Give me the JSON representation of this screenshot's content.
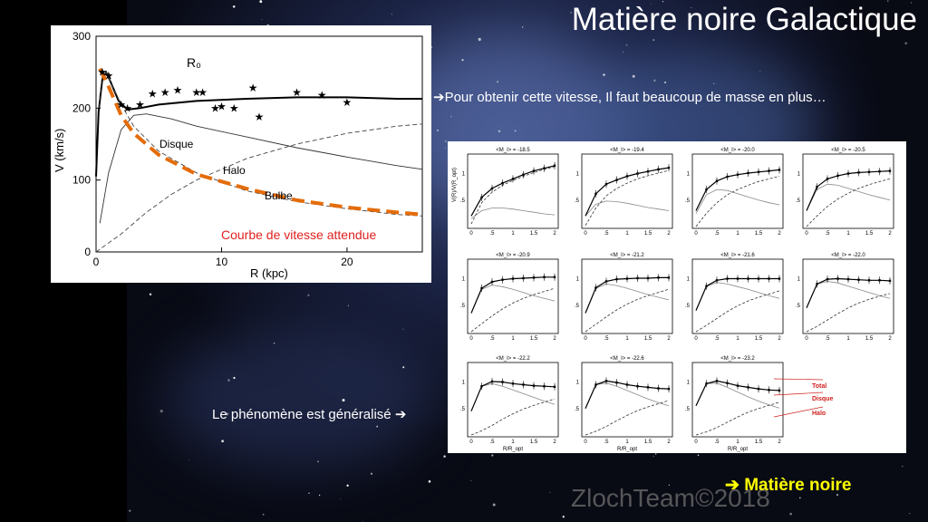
{
  "slide": {
    "title": "Matière noire Galactique",
    "note_top": "Pour obtenir  cette vitesse,  Il faut  beaucoup de masse en plus…",
    "note_bottom": "Le phénomène est généralisé",
    "conclusion": "Matière noire",
    "watermark": "ZlochTeam©2018",
    "arrow_icon": "arrow-right-icon",
    "colors": {
      "background": "#0b0f22",
      "title": "#ffffff",
      "conclusion": "#ffff00",
      "expected_curve": "#e46c0a",
      "expected_label": "#e02020"
    }
  },
  "chart_data": [
    {
      "type": "line",
      "xlabel": "R (kpc)",
      "ylabel": "V (km/s)",
      "xlim": [
        0,
        26
      ],
      "ylim": [
        0,
        300
      ],
      "xticks": [
        "0",
        "10",
        "20"
      ],
      "yticks": [
        "0",
        "100",
        "200",
        "300"
      ],
      "grid": false,
      "labels": {
        "r0": "R₀",
        "disk": "Disque",
        "halo": "Halo",
        "bulge": "Bulbe",
        "expected": "Courbe de vitesse attendue"
      },
      "series": [
        {
          "name": "Total",
          "style": "solid-thick",
          "x": [
            0,
            0.2,
            0.5,
            0.8,
            1.2,
            1.8,
            2.5,
            3.5,
            5,
            8,
            12,
            16,
            20,
            24,
            26
          ],
          "y": [
            105,
            195,
            240,
            250,
            235,
            210,
            198,
            200,
            205,
            210,
            213,
            215,
            215,
            213,
            213
          ]
        },
        {
          "name": "Disque",
          "style": "solid-thin",
          "x": [
            0.3,
            1,
            2,
            3,
            4,
            6,
            8,
            12,
            16,
            20,
            24,
            26
          ],
          "y": [
            40,
            110,
            170,
            190,
            192,
            185,
            175,
            160,
            145,
            132,
            120,
            115
          ]
        },
        {
          "name": "Halo",
          "style": "dashed",
          "x": [
            0,
            2,
            4,
            6,
            8,
            12,
            16,
            20,
            24,
            26
          ],
          "y": [
            0,
            25,
            55,
            80,
            100,
            130,
            150,
            165,
            175,
            178
          ]
        },
        {
          "name": "Bulbe",
          "style": "dashed",
          "x": [
            0.2,
            0.5,
            0.8,
            1.2,
            2,
            3,
            5,
            8,
            12,
            16,
            20,
            24,
            26
          ],
          "y": [
            200,
            245,
            250,
            235,
            205,
            175,
            140,
            110,
            85,
            70,
            60,
            52,
            50
          ]
        },
        {
          "name": "Courbe de vitesse attendue",
          "style": "dashed-orange",
          "x": [
            0.3,
            1,
            2,
            3,
            5,
            8,
            12,
            16,
            20,
            24,
            26
          ],
          "y": [
            255,
            230,
            190,
            165,
            135,
            108,
            88,
            72,
            62,
            55,
            52
          ]
        },
        {
          "name": "Observations",
          "style": "stars",
          "x": [
            0.5,
            1,
            2,
            2.5,
            3.5,
            4.5,
            5.5,
            6.5,
            8,
            8.5,
            9.5,
            10,
            11,
            12.5,
            13,
            16,
            18,
            20
          ],
          "y": [
            250,
            245,
            205,
            200,
            205,
            220,
            222,
            225,
            222,
            222,
            200,
            202,
            200,
            228,
            188,
            222,
            218,
            208
          ]
        }
      ]
    },
    {
      "type": "line",
      "xlabel": "R/R_opt",
      "ylabel": "V(R)/V(R_opt)",
      "xticks": [
        "0",
        ".5",
        "1",
        "1.5",
        "2"
      ],
      "yticks": [
        ".5",
        "1"
      ],
      "legend": [
        "Total",
        "Disque",
        "Halo"
      ],
      "legend_placement": "right",
      "panels": [
        {
          "label": "<M_I> = -18.5",
          "total": [
            0.2,
            0.55,
            0.72,
            0.82,
            0.9,
            0.98,
            1.05,
            1.1,
            1.15
          ],
          "disk": [
            0.15,
            0.3,
            0.35,
            0.35,
            0.33,
            0.3,
            0.27,
            0.24,
            0.22
          ],
          "halo": [
            0.05,
            0.45,
            0.65,
            0.78,
            0.87,
            0.95,
            1.02,
            1.08,
            1.13
          ]
        },
        {
          "label": "<M_I> = -19.4",
          "total": [
            0.2,
            0.62,
            0.8,
            0.88,
            0.95,
            1,
            1.04,
            1.08,
            1.11
          ],
          "disk": [
            0.2,
            0.42,
            0.48,
            0.47,
            0.44,
            0.4,
            0.36,
            0.33,
            0.3
          ],
          "halo": [
            0.02,
            0.35,
            0.58,
            0.72,
            0.82,
            0.9,
            0.96,
            1.01,
            1.06
          ]
        },
        {
          "label": "<M_I> = -20.0",
          "total": [
            0.3,
            0.7,
            0.86,
            0.94,
            0.98,
            1.01,
            1.03,
            1.05,
            1.07
          ],
          "disk": [
            0.25,
            0.6,
            0.7,
            0.68,
            0.62,
            0.56,
            0.5,
            0.45,
            0.41
          ],
          "halo": [
            0,
            0.25,
            0.45,
            0.6,
            0.7,
            0.78,
            0.85,
            0.9,
            0.95
          ]
        },
        {
          "label": "<M_I> = -20.5",
          "total": [
            0.3,
            0.75,
            0.9,
            0.96,
            1,
            1.02,
            1.03,
            1.04,
            1.05
          ],
          "disk": [
            0.3,
            0.7,
            0.8,
            0.78,
            0.72,
            0.66,
            0.6,
            0.55,
            0.5
          ],
          "halo": [
            0,
            0.2,
            0.38,
            0.52,
            0.63,
            0.72,
            0.79,
            0.85,
            0.9
          ]
        },
        {
          "label": "<M_I> = -20.9",
          "total": [
            0.35,
            0.82,
            0.94,
            0.98,
            1,
            1.01,
            1.02,
            1.03,
            1.03
          ],
          "disk": [
            0.35,
            0.8,
            0.88,
            0.85,
            0.8,
            0.74,
            0.68,
            0.63,
            0.58
          ],
          "halo": [
            0,
            0.15,
            0.3,
            0.43,
            0.54,
            0.63,
            0.7,
            0.76,
            0.82
          ]
        },
        {
          "label": "<M_I> = -21.2",
          "total": [
            0.35,
            0.83,
            0.95,
            0.99,
            1,
            1.01,
            1.01,
            1.02,
            1.02
          ],
          "disk": [
            0.35,
            0.82,
            0.9,
            0.87,
            0.82,
            0.76,
            0.7,
            0.65,
            0.6
          ],
          "halo": [
            0,
            0.14,
            0.28,
            0.41,
            0.52,
            0.61,
            0.68,
            0.74,
            0.8
          ]
        },
        {
          "label": "<M_I> = -21.6",
          "total": [
            0.4,
            0.86,
            0.97,
            1,
            1,
            1,
            1,
            1,
            1
          ],
          "disk": [
            0.4,
            0.85,
            0.93,
            0.9,
            0.85,
            0.8,
            0.74,
            0.68,
            0.63
          ],
          "halo": [
            0,
            0.12,
            0.25,
            0.38,
            0.49,
            0.58,
            0.65,
            0.71,
            0.77
          ]
        },
        {
          "label": "<M_I> = -22.0",
          "total": [
            0.45,
            0.9,
            0.99,
            1,
            0.99,
            0.98,
            0.97,
            0.97,
            0.96
          ],
          "disk": [
            0.45,
            0.9,
            0.95,
            0.92,
            0.86,
            0.8,
            0.74,
            0.68,
            0.63
          ],
          "halo": [
            0,
            0.1,
            0.22,
            0.34,
            0.45,
            0.54,
            0.61,
            0.67,
            0.72
          ]
        },
        {
          "label": "<M_I> = -22.2",
          "total": [
            0.45,
            0.92,
            1.01,
            1,
            0.97,
            0.95,
            0.93,
            0.92,
            0.91
          ],
          "disk": [
            0.45,
            0.92,
            0.97,
            0.92,
            0.85,
            0.78,
            0.71,
            0.64,
            0.58
          ],
          "halo": [
            0,
            0.08,
            0.18,
            0.3,
            0.4,
            0.49,
            0.56,
            0.62,
            0.68
          ]
        },
        {
          "label": "<M_I> = -22.6",
          "total": [
            0.5,
            0.95,
            1.02,
            0.99,
            0.95,
            0.92,
            0.9,
            0.88,
            0.87
          ],
          "disk": [
            0.5,
            0.95,
            0.98,
            0.92,
            0.84,
            0.76,
            0.68,
            0.61,
            0.55
          ],
          "halo": [
            0,
            0.07,
            0.16,
            0.27,
            0.37,
            0.46,
            0.53,
            0.59,
            0.65
          ]
        },
        {
          "label": "<M_I> = -23.2",
          "total": [
            0.55,
            0.97,
            1.02,
            0.98,
            0.93,
            0.9,
            0.87,
            0.85,
            0.84
          ],
          "disk": [
            0.55,
            0.97,
            0.98,
            0.9,
            0.81,
            0.72,
            0.64,
            0.57,
            0.51
          ],
          "halo": [
            0,
            0.06,
            0.14,
            0.24,
            0.34,
            0.43,
            0.5,
            0.56,
            0.62
          ]
        }
      ]
    }
  ]
}
